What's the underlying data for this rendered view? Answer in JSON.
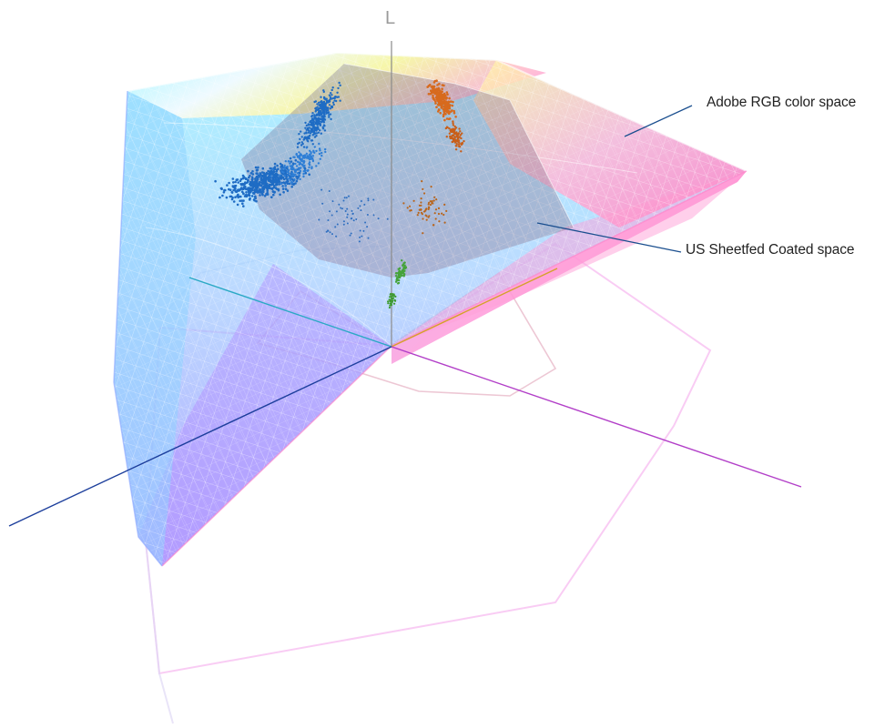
{
  "axis": {
    "vertical_label": "L"
  },
  "labels": {
    "outer_space": "Adobe RGB color space",
    "inner_space": "US Sheetfed Coated space"
  },
  "colors": {
    "leader_line": "#1b4f8f",
    "axis_cyan": "#2aa9c4",
    "axis_yellow": "#d4a12a",
    "axis_blue": "#1d3f9c",
    "axis_magenta": "#b23fc8",
    "vertical_axis": "#8a8a8a",
    "point_blue": "#1f6cc4",
    "point_orange": "#d76a1e",
    "point_green": "#45a33a"
  }
}
